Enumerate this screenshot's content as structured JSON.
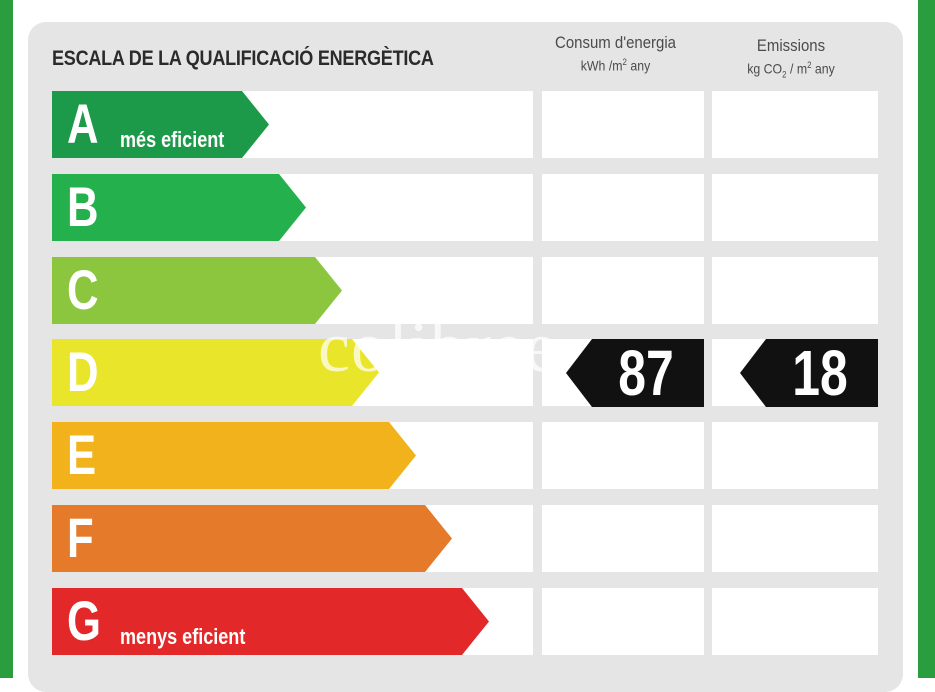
{
  "title": "ESCALA DE LA QUALIFICACIÓ ENERGÈTICA",
  "columns": {
    "energy": {
      "line1": "Consum d'energia",
      "unit_pre": "kWh /m",
      "unit_sup": "2",
      "unit_post": " any"
    },
    "emissions": {
      "line1": "Emissions",
      "unit_pre": "kg CO",
      "unit_sub": "2",
      "unit_mid": " / m",
      "unit_sup": "2",
      "unit_post": " any"
    }
  },
  "grades": [
    {
      "letter": "A",
      "sublabel": "més eficient",
      "color": "#1c9a4a"
    },
    {
      "letter": "B",
      "sublabel": "",
      "color": "#24b04c"
    },
    {
      "letter": "C",
      "sublabel": "",
      "color": "#8cc63e"
    },
    {
      "letter": "D",
      "sublabel": "",
      "color": "#e9e52a"
    },
    {
      "letter": "E",
      "sublabel": "",
      "color": "#f1b21c"
    },
    {
      "letter": "F",
      "sublabel": "",
      "color": "#e57a2a"
    },
    {
      "letter": "G",
      "sublabel": "menys eficient",
      "color": "#e3282a"
    }
  ],
  "rating": {
    "grade": "D",
    "energy_value": "87",
    "emissions_value": "18"
  },
  "watermark": "colibree",
  "colors": {
    "frame": "#2a9d3f",
    "panel": "#e5e5e5",
    "tag": "#111111"
  }
}
